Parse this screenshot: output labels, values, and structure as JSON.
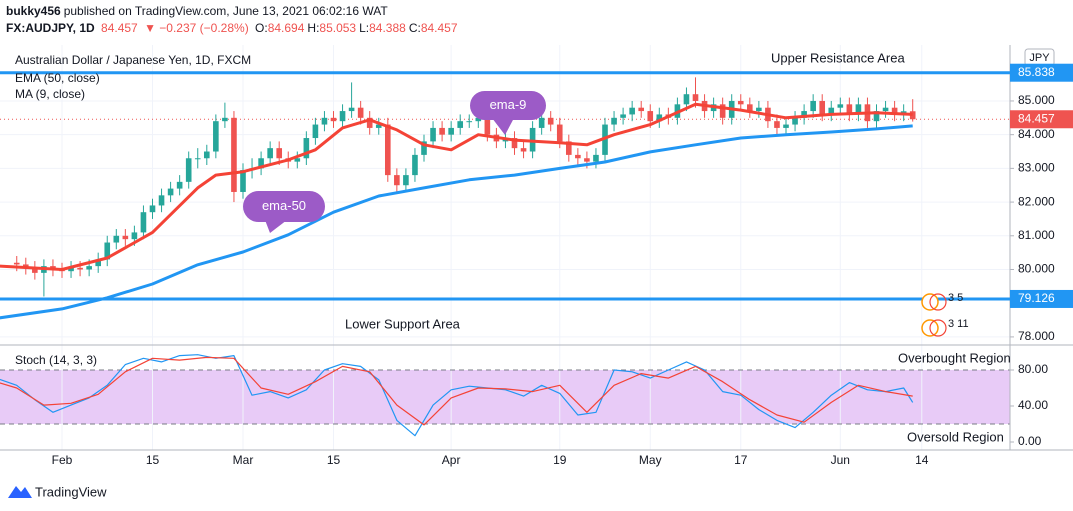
{
  "header": {
    "author": "bukky456",
    "published": "published on TradingView.com, June 13, 2021 06:02:16 WAT",
    "symbol": "FX:AUDJPY, 1D",
    "price": "84.457",
    "change": "▼ −0.237 (−0.28%)",
    "quote": [
      {
        "label": "O:",
        "value": "84.694"
      },
      {
        "label": "H:",
        "value": "85.053"
      },
      {
        "label": "L:",
        "value": "84.388"
      },
      {
        "label": "C:",
        "value": "84.457"
      }
    ]
  },
  "footer": {
    "brand": "TradingView"
  },
  "chart_data": [
    {
      "type": "candlestick",
      "title": "Australian Dollar / Japanese Yen, 1D, FXCM",
      "currency": "JPY",
      "xlim": [
        -1.85,
        109.75
      ],
      "ylim": [
        77.76,
        86.66
      ],
      "xticks": [
        {
          "value": 5,
          "label": "Feb"
        },
        15,
        {
          "value": 25,
          "label": "Mar"
        },
        {
          "value": 35,
          "label": "15"
        },
        {
          "value": 48,
          "label": "Apr"
        },
        {
          "value": 60,
          "label": "19"
        },
        {
          "value": 70,
          "label": "May"
        },
        {
          "value": 80,
          "label": "17"
        },
        {
          "value": 91,
          "label": "Jun"
        },
        {
          "value": 100,
          "label": "14"
        }
      ],
      "yticks": [
        {
          "value": 78,
          "label": "78.000"
        },
        {
          "value": 80,
          "label": "80.000"
        },
        {
          "value": 81,
          "label": "81.000"
        },
        {
          "value": 82,
          "label": "82.000"
        },
        {
          "value": 83,
          "label": "83.000"
        },
        {
          "value": 84,
          "label": "84.000"
        },
        {
          "value": 85,
          "label": "85.000"
        }
      ],
      "grid": true,
      "up_color": "#26a69a",
      "down_color": "#ef5350",
      "open": [
        80.2,
        80.15,
        80.05,
        79.9,
        80.1,
        80.0,
        79.95,
        80.05,
        80.0,
        80.1,
        80.3,
        80.8,
        81.0,
        80.9,
        81.1,
        81.7,
        81.9,
        82.2,
        82.4,
        82.6,
        83.3,
        83.3,
        83.5,
        84.4,
        84.5,
        82.3,
        82.95,
        83.0,
        83.3,
        83.6,
        83.3,
        83.2,
        83.3,
        83.9,
        84.3,
        84.5,
        84.4,
        84.7,
        84.8,
        84.5,
        84.2,
        84.3,
        82.8,
        82.5,
        82.8,
        83.4,
        83.8,
        84.2,
        84.0,
        84.2,
        84.4,
        84.4,
        84.5,
        84.0,
        83.8,
        83.9,
        83.6,
        83.5,
        84.2,
        84.5,
        84.3,
        83.8,
        83.4,
        83.3,
        83.2,
        83.4,
        84.3,
        84.5,
        84.6,
        84.8,
        84.7,
        84.4,
        84.6,
        84.5,
        84.9,
        85.2,
        85.0,
        84.7,
        84.9,
        84.5,
        85.0,
        84.9,
        84.7,
        84.8,
        84.4,
        84.2,
        84.3,
        84.5,
        84.7,
        85.0,
        84.6,
        84.8,
        84.9,
        84.6,
        84.9,
        84.4,
        84.7,
        84.8,
        84.6,
        84.694
      ],
      "high": [
        80.4,
        80.35,
        80.25,
        80.3,
        80.3,
        80.2,
        80.25,
        80.25,
        80.3,
        80.5,
        81.0,
        81.2,
        81.2,
        81.3,
        81.9,
        82.1,
        82.4,
        82.6,
        82.8,
        83.5,
        83.6,
        83.7,
        84.6,
        84.95,
        84.7,
        83.15,
        83.3,
        83.5,
        83.8,
        83.8,
        83.5,
        83.5,
        84.1,
        84.5,
        84.7,
        84.7,
        84.9,
        85.55,
        85.0,
        84.7,
        84.5,
        84.5,
        83.0,
        83.0,
        83.6,
        84.0,
        84.4,
        84.4,
        84.4,
        84.6,
        84.6,
        84.7,
        84.7,
        84.2,
        84.1,
        84.1,
        83.8,
        84.4,
        84.7,
        84.7,
        84.5,
        84.0,
        83.6,
        83.5,
        83.6,
        84.5,
        84.7,
        84.8,
        85.0,
        85.0,
        84.9,
        84.8,
        84.8,
        85.1,
        85.4,
        85.7,
        85.2,
        85.1,
        85.1,
        85.2,
        85.2,
        85.1,
        85.0,
        85.0,
        84.6,
        84.5,
        84.7,
        84.9,
        85.2,
        85.2,
        85.0,
        85.1,
        85.1,
        85.1,
        85.1,
        84.9,
        85.0,
        85.0,
        84.9,
        85.053
      ],
      "low": [
        79.95,
        79.85,
        79.7,
        79.2,
        79.8,
        79.75,
        79.75,
        79.8,
        79.8,
        79.9,
        80.1,
        80.6,
        80.7,
        80.7,
        80.9,
        81.5,
        81.7,
        82.0,
        82.2,
        82.4,
        83.0,
        83.1,
        83.3,
        84.2,
        82.0,
        82.1,
        82.7,
        82.8,
        83.1,
        83.1,
        83.0,
        83.0,
        83.1,
        83.7,
        84.1,
        84.2,
        84.2,
        84.5,
        84.3,
        84.0,
        84.0,
        82.6,
        82.3,
        82.3,
        82.6,
        83.2,
        83.6,
        83.8,
        83.8,
        84.0,
        84.2,
        84.2,
        83.8,
        83.6,
        83.6,
        83.4,
        83.3,
        83.3,
        84.0,
        84.1,
        83.6,
        83.2,
        83.1,
        83.0,
        83.0,
        83.2,
        84.1,
        84.3,
        84.4,
        84.5,
        84.2,
        84.2,
        84.3,
        84.3,
        84.7,
        84.8,
        84.5,
        84.5,
        84.3,
        84.3,
        84.7,
        84.5,
        84.5,
        84.2,
        84.0,
        84.0,
        84.1,
        84.3,
        84.5,
        84.4,
        84.4,
        84.6,
        84.4,
        84.4,
        84.2,
        84.2,
        84.5,
        84.4,
        84.4,
        84.388
      ],
      "close": [
        80.15,
        80.05,
        79.9,
        80.1,
        80.0,
        79.95,
        80.05,
        80.0,
        80.1,
        80.3,
        80.8,
        81.0,
        80.9,
        81.1,
        81.7,
        81.9,
        82.2,
        82.4,
        82.6,
        83.3,
        83.3,
        83.5,
        84.4,
        84.5,
        82.3,
        82.95,
        83.0,
        83.3,
        83.6,
        83.3,
        83.2,
        83.3,
        83.9,
        84.3,
        84.5,
        84.4,
        84.7,
        84.8,
        84.5,
        84.2,
        84.3,
        82.8,
        82.5,
        82.8,
        83.4,
        83.8,
        84.2,
        84.0,
        84.2,
        84.4,
        84.4,
        84.5,
        84.0,
        83.8,
        83.9,
        83.6,
        83.5,
        84.2,
        84.5,
        84.3,
        83.8,
        83.4,
        83.3,
        83.2,
        83.4,
        84.3,
        84.5,
        84.6,
        84.8,
        84.7,
        84.4,
        84.6,
        84.5,
        84.9,
        85.2,
        85.0,
        84.7,
        84.9,
        84.5,
        85.0,
        84.9,
        84.7,
        84.8,
        84.4,
        84.2,
        84.3,
        84.5,
        84.7,
        85.0,
        84.6,
        84.8,
        84.9,
        84.6,
        84.9,
        84.4,
        84.7,
        84.8,
        84.6,
        84.694,
        84.457
      ],
      "series": [
        {
          "name": "EMA (50, close)",
          "color": "#2196f3",
          "width": 3,
          "x": [
            -2,
            5,
            10,
            15,
            20,
            25,
            30,
            35,
            40,
            45,
            50,
            55,
            60,
            65,
            70,
            75,
            80,
            85,
            90,
            95,
            99
          ],
          "values": [
            78.56,
            78.83,
            79.16,
            79.57,
            80.14,
            80.52,
            81.03,
            81.7,
            82.18,
            82.42,
            82.66,
            82.8,
            83.0,
            83.19,
            83.49,
            83.7,
            83.9,
            84.0,
            84.08,
            84.17,
            84.26
          ]
        },
        {
          "name": "MA (9, close)",
          "color": "#f44336",
          "width": 3,
          "x": [
            -2,
            5,
            10,
            15,
            20,
            22,
            25,
            30,
            33,
            36,
            39,
            42,
            45,
            48,
            51,
            55,
            60,
            63,
            66,
            70,
            75,
            80,
            85,
            90,
            95,
            99
          ],
          "values": [
            80.1,
            80.0,
            80.34,
            81.1,
            82.42,
            82.8,
            82.9,
            83.25,
            83.55,
            84.2,
            84.44,
            84.14,
            83.7,
            83.55,
            84.0,
            83.84,
            83.76,
            83.7,
            84.0,
            84.3,
            84.9,
            84.73,
            84.5,
            84.6,
            84.65,
            84.6
          ]
        }
      ],
      "hline_color": "#2196f3",
      "hlines": [
        {
          "value": 85.838,
          "label": "85.838"
        },
        {
          "value": 79.126,
          "label": "79.126"
        }
      ],
      "last_price": {
        "value": 84.457,
        "label": "84.457",
        "color": "#ef5350"
      },
      "annotations": [
        "Upper Resistance Area",
        "Lower Support Area"
      ],
      "callout_color": "#9c5bc7",
      "callouts": [
        "ema-9",
        "ema-50"
      ],
      "events": [
        "3 5",
        "3 11"
      ]
    },
    {
      "type": "line",
      "title": "Stoch (14, 3, 3)",
      "xlim": [
        -1.85,
        109.75
      ],
      "ylim": [
        -8.9,
        107.8
      ],
      "yticks": [
        {
          "value": 80,
          "label": "80.00"
        },
        {
          "value": 40,
          "label": "40.00"
        },
        {
          "value": 0,
          "label": "0.00"
        }
      ],
      "bands": [
        20,
        80
      ],
      "band_color": "#e8cbf7",
      "series": [
        {
          "color": "#2196f3",
          "width": 1.2,
          "x": [
            -2,
            0,
            2,
            4,
            6,
            8,
            10,
            12,
            14,
            16,
            18,
            20,
            22,
            24,
            26,
            28,
            30,
            32,
            34,
            36,
            38,
            40,
            42,
            44,
            46,
            48,
            50,
            52,
            54,
            56,
            58,
            60,
            62,
            64,
            66,
            68,
            70,
            72,
            74,
            76,
            78,
            80,
            82,
            84,
            86,
            88,
            90,
            92,
            94,
            96,
            98,
            99
          ],
          "values": [
            70,
            63,
            47,
            33,
            41,
            49,
            63,
            86,
            93,
            89,
            96,
            97,
            93,
            96,
            52,
            56,
            49,
            58,
            80,
            87,
            84,
            69,
            24,
            7,
            41,
            58,
            62,
            60,
            58,
            51,
            63,
            54,
            30,
            33,
            80,
            78,
            71,
            80,
            89,
            80,
            56,
            52,
            36,
            24,
            16,
            33,
            52,
            66,
            58,
            56,
            60,
            44
          ]
        },
        {
          "color": "#f44336",
          "width": 1.2,
          "x": [
            -2,
            0,
            3,
            6,
            9,
            12,
            15,
            18,
            21,
            24,
            27,
            30,
            33,
            36,
            39,
            42,
            45,
            48,
            51,
            54,
            57,
            60,
            63,
            66,
            69,
            72,
            75,
            78,
            81,
            84,
            87,
            90,
            93,
            96,
            99
          ],
          "values": [
            66,
            60,
            41,
            43,
            53,
            78,
            93,
            91,
            94,
            93,
            60,
            53,
            67,
            84,
            78,
            41,
            19,
            49,
            60,
            59,
            56,
            63,
            33,
            63,
            76,
            71,
            84,
            67,
            47,
            30,
            22,
            44,
            63,
            56,
            51
          ]
        }
      ],
      "annotations": [
        "Overbought Region",
        "Oversold Region"
      ]
    }
  ]
}
